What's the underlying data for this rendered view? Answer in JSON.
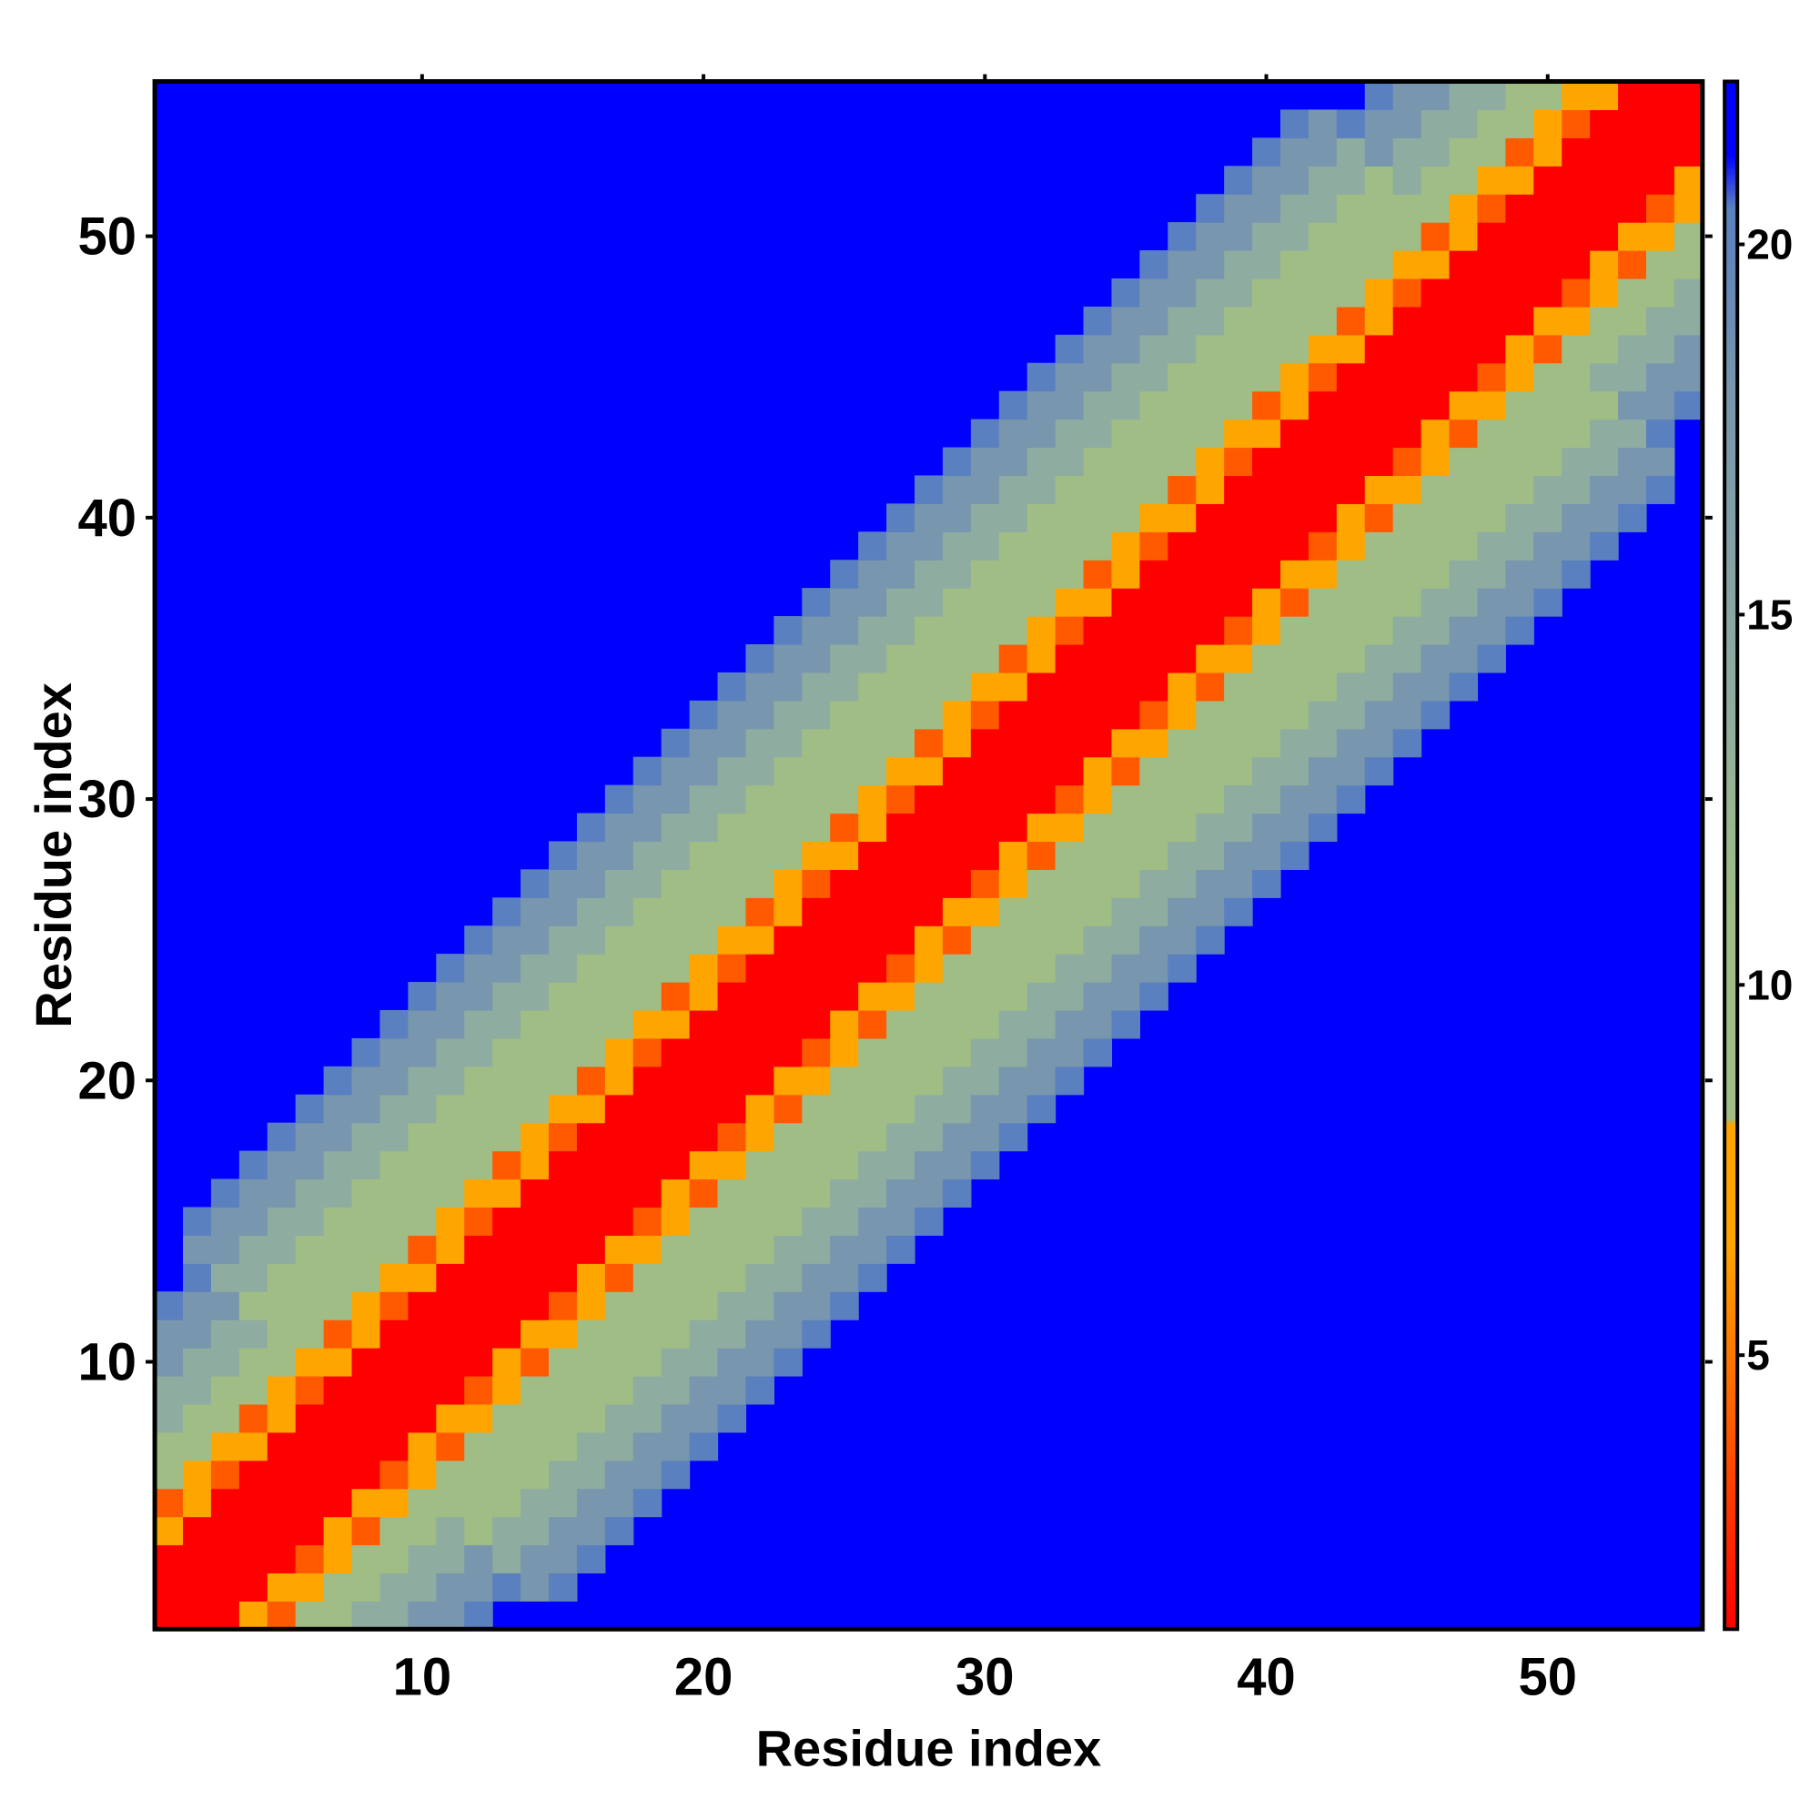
{
  "chart_data": {
    "type": "heatmap",
    "title": "",
    "xlabel": "Residue index",
    "ylabel": "Residue index",
    "n_residues": 55,
    "xlim": [
      0.5,
      55.5
    ],
    "ylim": [
      0.5,
      55.5
    ],
    "x_ticks": [
      10,
      20,
      30,
      40,
      50
    ],
    "y_ticks": [
      10,
      20,
      30,
      40,
      50
    ],
    "colorbar": {
      "ticks": [
        5,
        10,
        15,
        20
      ],
      "range": [
        1.3,
        22.2
      ],
      "colors": {
        "red": "#ff0000",
        "orange_red": "#ff5a00",
        "orange": "#ffa500",
        "sage": "#a0bd86",
        "gray_sage": "#8eaca0",
        "slate": "#7896ad",
        "steel_blue": "#5a80c0",
        "blue": "#0000ff"
      }
    },
    "value_pattern": {
      "description": "symmetric distance map; value increases with |i-j|",
      "diag_red_max": 2,
      "orange_max": 4,
      "sage_max": 8,
      "gray_max": 10,
      "slate_max": 12,
      "steel_max": 13,
      "background_value": 22
    }
  }
}
